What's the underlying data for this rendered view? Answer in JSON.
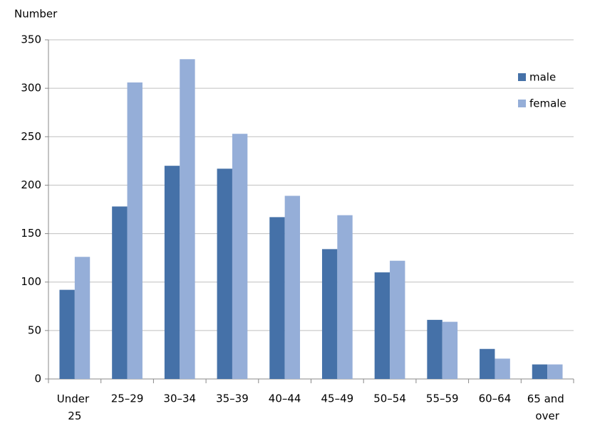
{
  "chart_data": {
    "type": "bar",
    "y_label": "Number",
    "categories": [
      "Under 25",
      "25–29",
      "30–34",
      "35–39",
      "40–44",
      "45–49",
      "50–54",
      "55–59",
      "60–64",
      "65 and over"
    ],
    "series": [
      {
        "name": "male",
        "color": "#4571a8",
        "values": [
          92,
          178,
          220,
          217,
          167,
          134,
          110,
          61,
          31,
          15
        ]
      },
      {
        "name": "female",
        "color": "#95aed8",
        "values": [
          126,
          306,
          330,
          253,
          189,
          169,
          122,
          59,
          21,
          15
        ]
      }
    ],
    "ylim": [
      0,
      350
    ],
    "yticks": [
      0,
      50,
      100,
      150,
      200,
      250,
      300,
      350
    ],
    "grid": true,
    "legend": "right"
  }
}
